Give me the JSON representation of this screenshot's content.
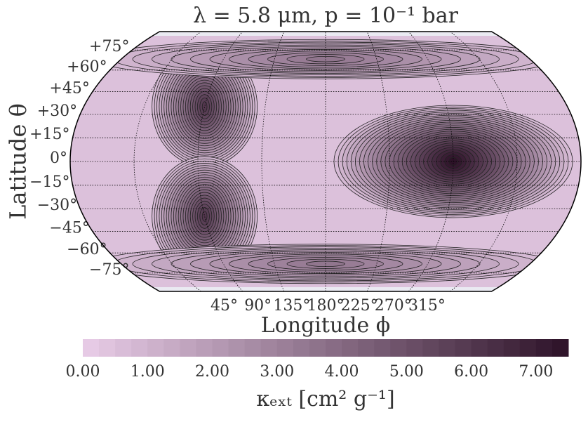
{
  "chart_data": {
    "type": "contour-map",
    "title": "λ = 5.8 μm, p = 10⁻¹ bar",
    "xlabel": "Longitude ϕ",
    "ylabel": "Latitude θ",
    "xlim": [
      0,
      360
    ],
    "ylim": [
      -90,
      90
    ],
    "xticks": [
      {
        "value": 45,
        "label": "45°"
      },
      {
        "value": 90,
        "label": "90°"
      },
      {
        "value": 135,
        "label": "135°"
      },
      {
        "value": 180,
        "label": "180°"
      },
      {
        "value": 225,
        "label": "225°"
      },
      {
        "value": 270,
        "label": "270°"
      },
      {
        "value": 315,
        "label": "315°"
      }
    ],
    "yticks": [
      {
        "value": 75,
        "label": "+75°"
      },
      {
        "value": 60,
        "label": "+60°"
      },
      {
        "value": 45,
        "label": "+45°"
      },
      {
        "value": 30,
        "label": "+30°"
      },
      {
        "value": 15,
        "label": "+15°"
      },
      {
        "value": 0,
        "label": "0°"
      },
      {
        "value": -15,
        "label": "−15°"
      },
      {
        "value": -30,
        "label": "−30°"
      },
      {
        "value": -45,
        "label": "−45°"
      },
      {
        "value": -60,
        "label": "−60°"
      },
      {
        "value": -75,
        "label": "−75°"
      }
    ],
    "field_min": 0.5,
    "peaks": [
      {
        "lon": 90,
        "lat": 35,
        "value": 6.0
      },
      {
        "lon": 90,
        "lat": -35,
        "value": 6.0
      },
      {
        "lon": 270,
        "lat": 0,
        "value": 7.5
      },
      {
        "lon": 180,
        "lat": 68,
        "value": 3.5
      },
      {
        "lon": 180,
        "lat": -68,
        "value": 3.5
      }
    ],
    "colorbar": {
      "label": "κₑₓₜ [cm² g⁻¹]",
      "clim": [
        0,
        7.5
      ],
      "ticks": [
        {
          "value": 0,
          "label": "0.00"
        },
        {
          "value": 1,
          "label": "1.00"
        },
        {
          "value": 2,
          "label": "2.00"
        },
        {
          "value": 3,
          "label": "3.00"
        },
        {
          "value": 4,
          "label": "4.00"
        },
        {
          "value": 5,
          "label": "5.00"
        },
        {
          "value": 6,
          "label": "6.00"
        },
        {
          "value": 7,
          "label": "7.00"
        }
      ]
    },
    "colors": [
      "#e9cde8",
      "#2d1228"
    ]
  }
}
